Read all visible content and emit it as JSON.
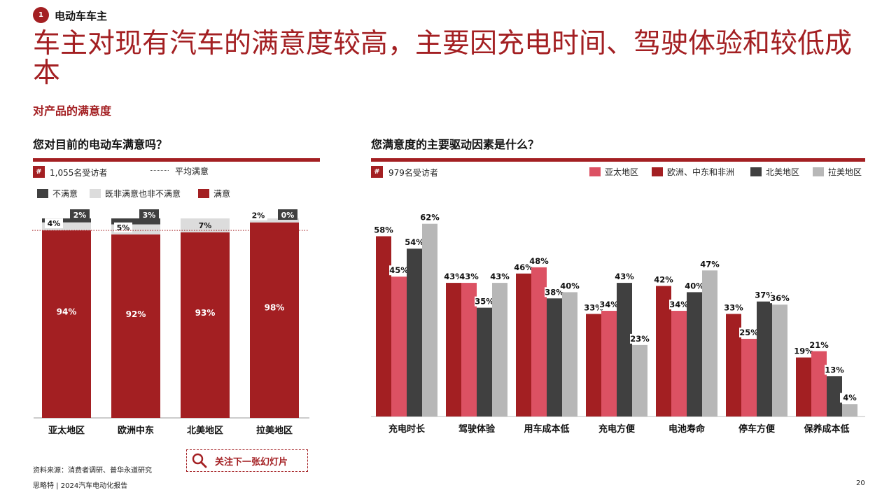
{
  "section": {
    "number": "1",
    "title": "电动车车主"
  },
  "headline": "车主对现有汽车的满意度较高，主要因充电时间、驾驶体验和较低成本",
  "subheadline": "对产品的满意度",
  "colors": {
    "brand": "#a31f22",
    "pink": "#dc5163",
    "dark": "#404040",
    "gray": "#b7b7b7",
    "light_gray": "#dcdcdc"
  },
  "left_panel": {
    "question": "您对目前的电动车满意吗？",
    "hash_badge": "#",
    "respondents": "1,055名受访者",
    "avg_label": "平均满意",
    "legend": {
      "dissatisfied": "不满意",
      "neutral": "既非满意也非不满意",
      "satisfied": "满意"
    }
  },
  "right_panel": {
    "question": "您满意度的主要驱动因素是什么？",
    "hash_badge": "#",
    "respondents": "979名受访者",
    "legend": [
      "亚太地区",
      "欧洲、中东和非洲",
      "北美地区",
      "拉美地区"
    ]
  },
  "chart_data": [
    {
      "type": "bar",
      "stacked": true,
      "categories": [
        "亚太地区",
        "欧洲中东",
        "北美地区",
        "拉美地区"
      ],
      "series": [
        {
          "name": "满意",
          "values": [
            94,
            92,
            93,
            98
          ],
          "labels": [
            "94%",
            "92%",
            "93%",
            "98%"
          ]
        },
        {
          "name": "既非满意也非不满意",
          "values": [
            4,
            5,
            7,
            2
          ],
          "labels": [
            "4%",
            "5%",
            "7%",
            "2%"
          ]
        },
        {
          "name": "不满意",
          "values": [
            2,
            3,
            0,
            0
          ],
          "labels": [
            "2%",
            "3%",
            "",
            "0%"
          ]
        }
      ],
      "average_line": 94,
      "ylim": [
        0,
        100
      ]
    },
    {
      "type": "bar",
      "categories": [
        "充电时长",
        "驾驶体验",
        "用车成本低",
        "充电方便",
        "电池寿命",
        "停车方便",
        "保养成本低"
      ],
      "series": [
        {
          "name": "欧洲、中东和非洲",
          "values": [
            58,
            43,
            46,
            33,
            42,
            33,
            19
          ]
        },
        {
          "name": "亚太地区",
          "values": [
            45,
            43,
            48,
            34,
            34,
            25,
            21
          ]
        },
        {
          "name": "北美地区",
          "values": [
            54,
            35,
            38,
            43,
            40,
            37,
            13
          ]
        },
        {
          "name": "拉美地区",
          "values": [
            62,
            43,
            40,
            23,
            47,
            36,
            4
          ]
        }
      ],
      "ylim": [
        0,
        70
      ]
    }
  ],
  "next_slide": "关注下一张幻灯片",
  "footer": {
    "source": "资料来源：消费者调研、普华永道研究",
    "report": "思略特 | 2024汽车电动化报告",
    "page": "20"
  }
}
